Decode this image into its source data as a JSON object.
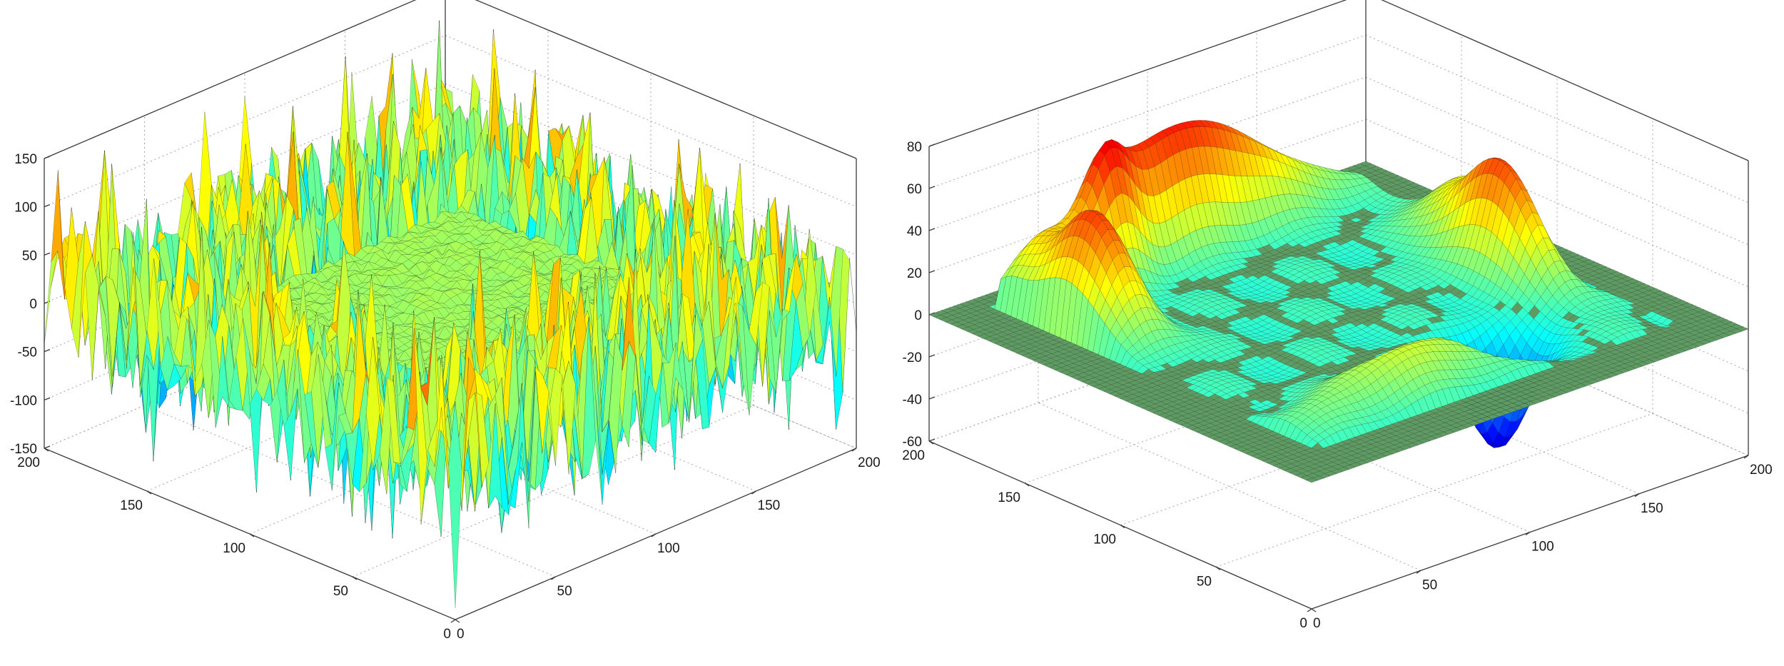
{
  "chart_data": [
    {
      "type": "surface",
      "title": "",
      "xlabel": "",
      "ylabel": "",
      "zlabel": "",
      "x_ticks": [
        "0",
        "50",
        "100",
        "150",
        "200"
      ],
      "y_ticks": [
        "0",
        "50",
        "100",
        "150",
        "200"
      ],
      "z_ticks": [
        "-150",
        "-100",
        "-50",
        "0",
        "50",
        "100",
        "150"
      ],
      "xlim": [
        0,
        200
      ],
      "ylim": [
        0,
        200
      ],
      "zlim": [
        -150,
        150
      ],
      "grid": true,
      "colormap": "jet",
      "description_values": {
        "flat_region_x": [
          50,
          150
        ],
        "flat_region_y": [
          50,
          150
        ],
        "flat_region_z": 10,
        "noise_amplitude": 150
      }
    },
    {
      "type": "surface",
      "title": "",
      "xlabel": "",
      "ylabel": "",
      "zlabel": "",
      "x_ticks": [
        "0",
        "50",
        "100",
        "150",
        "200"
      ],
      "y_ticks": [
        "0",
        "50",
        "100",
        "150",
        "200"
      ],
      "z_ticks": [
        "-60",
        "-40",
        "-20",
        "0",
        "20",
        "40",
        "60",
        "80"
      ],
      "xlim": [
        0,
        200
      ],
      "ylim": [
        0,
        200
      ],
      "zlim": [
        -60,
        80
      ],
      "grid": true,
      "colormap": "jet",
      "features": [
        {
          "kind": "ridge",
          "x": 30,
          "y": 150,
          "z": 55
        },
        {
          "kind": "ridge",
          "x": 100,
          "y": 185,
          "z": 70
        },
        {
          "kind": "peak",
          "x": 170,
          "y": 95,
          "z": 55
        },
        {
          "kind": "trough",
          "x": 130,
          "y": 55,
          "z": -55
        },
        {
          "kind": "trough",
          "x": 185,
          "y": 90,
          "z": -55
        }
      ]
    }
  ]
}
